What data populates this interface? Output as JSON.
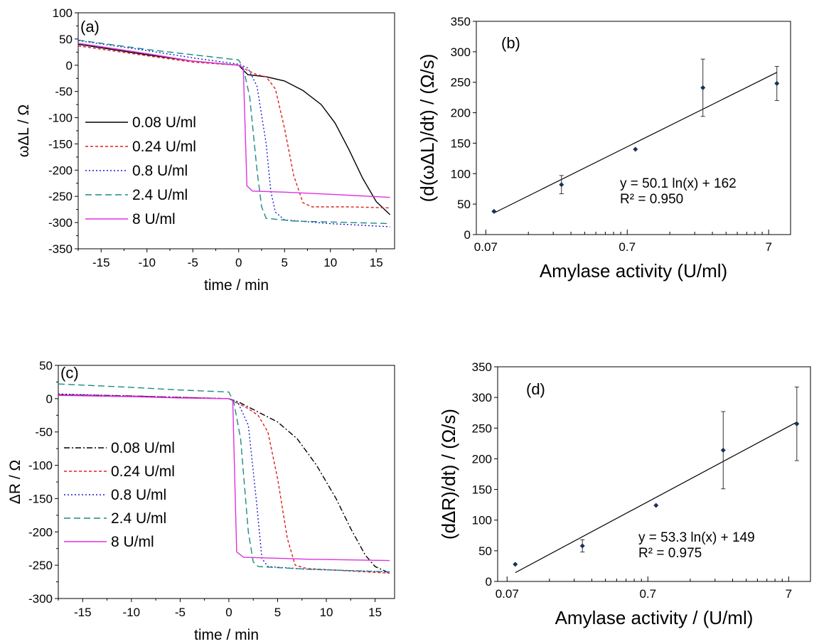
{
  "chart_data": [
    {
      "panel_label": "(a)",
      "type": "line",
      "xlabel": "time / min",
      "ylabel": "ωΔL / Ω",
      "xlim": [
        -17.5,
        17
      ],
      "ylim": [
        -350,
        100
      ],
      "xticks": [
        -15,
        -10,
        -5,
        0,
        5,
        10,
        15
      ],
      "yticks": [
        100,
        50,
        0,
        -50,
        -100,
        -150,
        -200,
        -250,
        -300,
        -350
      ],
      "legend_position": "left",
      "series": [
        {
          "name": "0.08 U/ml",
          "color": "#000000",
          "dash": "solid",
          "points": [
            [
              -17.5,
              40
            ],
            [
              -10,
              20
            ],
            [
              -5,
              8
            ],
            [
              0,
              0
            ],
            [
              1,
              -18
            ],
            [
              3,
              -22
            ],
            [
              5,
              -30
            ],
            [
              7,
              -48
            ],
            [
              9,
              -75
            ],
            [
              10.5,
              -110
            ],
            [
              12,
              -160
            ],
            [
              13.5,
              -215
            ],
            [
              15,
              -260
            ],
            [
              16.5,
              -285
            ]
          ]
        },
        {
          "name": "0.24 U/ml",
          "color": "#e0201b",
          "dash": "4,3",
          "points": [
            [
              -17.5,
              37
            ],
            [
              -10,
              18
            ],
            [
              -5,
              6
            ],
            [
              0,
              0
            ],
            [
              1,
              -10
            ],
            [
              2,
              -18
            ],
            [
              3,
              -22
            ],
            [
              4,
              -45
            ],
            [
              5,
              -120
            ],
            [
              6,
              -210
            ],
            [
              7,
              -262
            ],
            [
              8,
              -270
            ],
            [
              12,
              -270
            ],
            [
              16.5,
              -272
            ]
          ]
        },
        {
          "name": "0.8 U/ml",
          "color": "#1a1ad6",
          "dash": "2,3",
          "points": [
            [
              -17.5,
              47
            ],
            [
              -10,
              28
            ],
            [
              -5,
              14
            ],
            [
              0,
              2
            ],
            [
              1,
              -5
            ],
            [
              2,
              -40
            ],
            [
              3,
              -150
            ],
            [
              3.5,
              -240
            ],
            [
              4,
              -280
            ],
            [
              5,
              -295
            ],
            [
              10,
              -302
            ],
            [
              16.5,
              -308
            ]
          ]
        },
        {
          "name": "2.4 U/ml",
          "color": "#1a8c80",
          "dash": "9,5",
          "points": [
            [
              -17.5,
              48
            ],
            [
              -10,
              30
            ],
            [
              -5,
              20
            ],
            [
              0,
              10
            ],
            [
              0.5,
              -5
            ],
            [
              1.2,
              -60
            ],
            [
              2,
              -200
            ],
            [
              2.5,
              -270
            ],
            [
              3,
              -292
            ],
            [
              6,
              -297
            ],
            [
              16.5,
              -302
            ]
          ]
        },
        {
          "name": "8 U/ml",
          "color": "#e030e0",
          "dash": "solid",
          "points": [
            [
              -17.5,
              42
            ],
            [
              -10,
              22
            ],
            [
              -5,
              8
            ],
            [
              0,
              0
            ],
            [
              0.5,
              -5
            ],
            [
              0.7,
              -120
            ],
            [
              0.9,
              -230
            ],
            [
              1.5,
              -240
            ],
            [
              5,
              -242
            ],
            [
              10,
              -246
            ],
            [
              16.5,
              -252
            ]
          ]
        }
      ]
    },
    {
      "panel_label": "(b)",
      "type": "scatter",
      "xlabel": "Amylase activity (U/ml)",
      "ylabel": "(d(ωΔL)/dt) / (Ω/s)",
      "xscale": "log",
      "xlim": [
        0.06,
        10
      ],
      "ylim": [
        0,
        350
      ],
      "xticks": [
        "0.07",
        "0.7",
        "7"
      ],
      "yticks": [
        0,
        50,
        100,
        150,
        200,
        250,
        300,
        350
      ],
      "equation": "y = 50.1 ln(x) + 162",
      "r_squared": "R² = 0.950",
      "points": [
        {
          "x": 0.08,
          "y": 38,
          "err": 2
        },
        {
          "x": 0.24,
          "y": 82,
          "err": 15
        },
        {
          "x": 0.8,
          "y": 140,
          "err": 2
        },
        {
          "x": 2.4,
          "y": 241,
          "err": 47
        },
        {
          "x": 8,
          "y": 248,
          "err": 28
        }
      ],
      "fit": {
        "a": 50.1,
        "b": 162,
        "x_range": [
          0.08,
          8
        ]
      }
    },
    {
      "panel_label": "(c)",
      "type": "line",
      "xlabel": "time / min",
      "ylabel": "ΔR / Ω",
      "xlim": [
        -17.5,
        17
      ],
      "ylim": [
        -300,
        50
      ],
      "xticks": [
        -15,
        -10,
        -5,
        0,
        5,
        10,
        15
      ],
      "yticks": [
        50,
        0,
        -50,
        -100,
        -150,
        -200,
        -250,
        -300
      ],
      "legend_position": "left",
      "series": [
        {
          "name": "0.08 U/ml",
          "color": "#000000",
          "dash": "8,3,2,3",
          "points": [
            [
              -17.5,
              6
            ],
            [
              -10,
              4
            ],
            [
              -5,
              2
            ],
            [
              0,
              0
            ],
            [
              1,
              -5
            ],
            [
              3,
              -20
            ],
            [
              5,
              -35
            ],
            [
              7,
              -60
            ],
            [
              9,
              -100
            ],
            [
              11,
              -150
            ],
            [
              12.5,
              -195
            ],
            [
              14,
              -235
            ],
            [
              15,
              -252
            ],
            [
              16.5,
              -262
            ]
          ]
        },
        {
          "name": "0.24 U/ml",
          "color": "#e0201b",
          "dash": "4,3",
          "points": [
            [
              -17.5,
              6
            ],
            [
              -10,
              4
            ],
            [
              -5,
              2
            ],
            [
              0,
              0
            ],
            [
              2,
              -15
            ],
            [
              3,
              -25
            ],
            [
              4,
              -50
            ],
            [
              5,
              -120
            ],
            [
              6,
              -210
            ],
            [
              6.8,
              -250
            ],
            [
              8,
              -255
            ],
            [
              16.5,
              -262
            ]
          ]
        },
        {
          "name": "0.8 U/ml",
          "color": "#1a1ad6",
          "dash": "2,3",
          "points": [
            [
              -17.5,
              7
            ],
            [
              -10,
              4
            ],
            [
              -5,
              2
            ],
            [
              0,
              0
            ],
            [
              1,
              -8
            ],
            [
              2,
              -40
            ],
            [
              2.8,
              -150
            ],
            [
              3.4,
              -240
            ],
            [
              4,
              -252
            ],
            [
              8,
              -256
            ],
            [
              16.5,
              -260
            ]
          ]
        },
        {
          "name": "2.4 U/ml",
          "color": "#1a8c80",
          "dash": "9,5",
          "points": [
            [
              -17.5,
              22
            ],
            [
              -10,
              17
            ],
            [
              -5,
              13
            ],
            [
              0,
              10
            ],
            [
              0.5,
              -5
            ],
            [
              1.2,
              -60
            ],
            [
              2,
              -200
            ],
            [
              2.5,
              -245
            ],
            [
              3,
              -252
            ],
            [
              8,
              -256
            ],
            [
              16.5,
              -260
            ]
          ]
        },
        {
          "name": "8 U/ml",
          "color": "#e030e0",
          "dash": "solid",
          "points": [
            [
              -17.5,
              5
            ],
            [
              -10,
              3
            ],
            [
              -5,
              1
            ],
            [
              0,
              0
            ],
            [
              0.4,
              -3
            ],
            [
              0.6,
              -120
            ],
            [
              0.8,
              -230
            ],
            [
              1.5,
              -238
            ],
            [
              8,
              -241
            ],
            [
              16.5,
              -243
            ]
          ]
        }
      ]
    },
    {
      "panel_label": "(d)",
      "type": "scatter",
      "xlabel": "Amylase activity / (U/ml)",
      "ylabel": "(dΔR)/dt) / (Ω/s)",
      "xscale": "log",
      "xlim": [
        0.06,
        10
      ],
      "ylim": [
        0,
        350
      ],
      "xticks": [
        "0.07",
        "0.7",
        "7"
      ],
      "yticks": [
        0,
        50,
        100,
        150,
        200,
        250,
        300,
        350
      ],
      "equation": "y = 53.3 ln(x) + 149",
      "r_squared": "R² = 0.975",
      "points": [
        {
          "x": 0.08,
          "y": 28,
          "err": 2
        },
        {
          "x": 0.24,
          "y": 58,
          "err": 10
        },
        {
          "x": 0.8,
          "y": 124,
          "err": 2
        },
        {
          "x": 2.4,
          "y": 214,
          "err": 63
        },
        {
          "x": 8,
          "y": 257,
          "err": 60
        }
      ],
      "fit": {
        "a": 53.3,
        "b": 149,
        "x_range": [
          0.08,
          8
        ]
      }
    }
  ]
}
